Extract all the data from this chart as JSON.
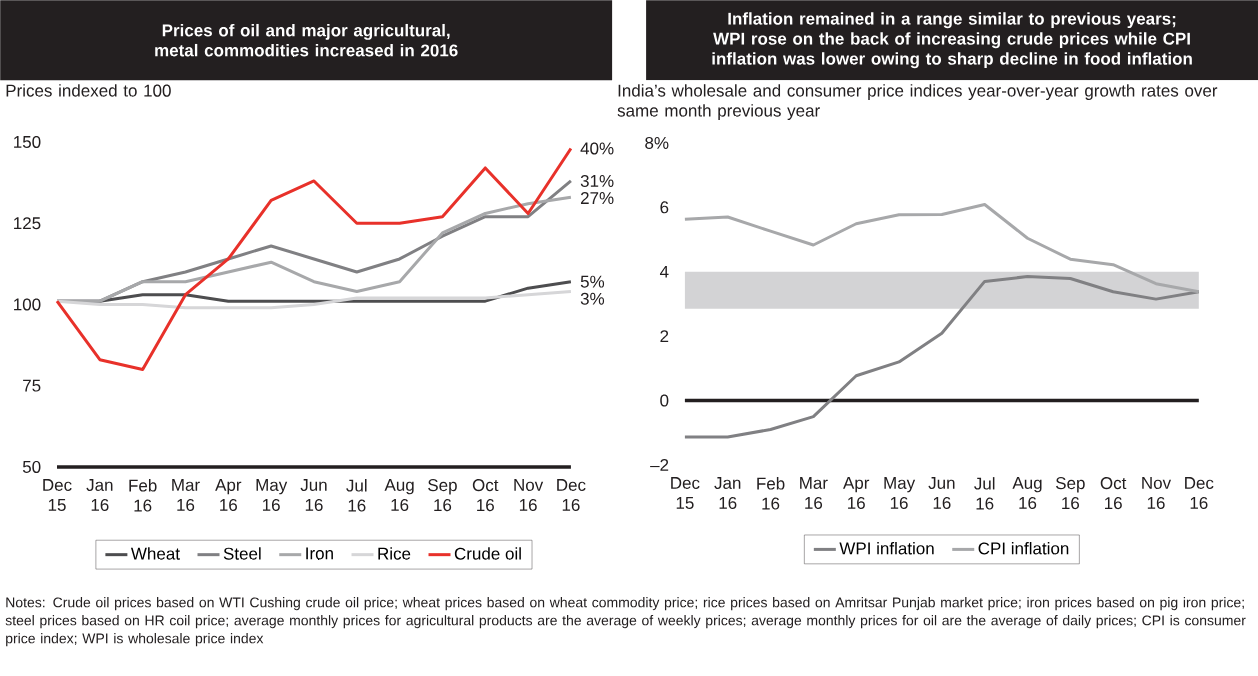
{
  "chart_data": [
    {
      "type": "line",
      "title": "Prices of oil and major agricultural, metal commodities increased in 2016",
      "ylabel": "Prices indexed to 100",
      "categories": [
        "Dec 15",
        "Jan 16",
        "Feb 16",
        "Mar 16",
        "Apr 16",
        "May 16",
        "Jun 16",
        "Jul 16",
        "Aug 16",
        "Sep 16",
        "Oct 16",
        "Nov 16",
        "Dec 16"
      ],
      "series": [
        {
          "name": "Wheat",
          "color": "#4d4d4f",
          "values": [
            101,
            101,
            103,
            103,
            101,
            101,
            101,
            101,
            101,
            101,
            101,
            105,
            107
          ]
        },
        {
          "name": "Steel",
          "color": "#808083",
          "values": [
            101,
            101,
            107,
            110,
            114,
            118,
            114,
            110,
            114,
            121,
            127,
            127,
            138
          ]
        },
        {
          "name": "Iron",
          "color": "#a7a8aa",
          "values": [
            101,
            101,
            107,
            107,
            110,
            113,
            107,
            104,
            107,
            122,
            128,
            131,
            133
          ]
        },
        {
          "name": "Rice",
          "color": "#d6d6d8",
          "values": [
            101,
            100,
            100,
            99,
            99,
            99,
            100,
            102,
            102,
            102,
            102,
            103,
            104
          ]
        },
        {
          "name": "Crude oil",
          "color": "#e8312a",
          "values": [
            101,
            83,
            80,
            103,
            114,
            132,
            138,
            125,
            125,
            127,
            142,
            128,
            148
          ]
        }
      ],
      "ylim": [
        50,
        150
      ],
      "yticks": [
        50,
        75,
        100,
        125,
        150
      ],
      "legend": "bottom",
      "annotations": [
        {
          "text": "40%",
          "x": "Dec 16",
          "y": 148
        },
        {
          "text": "31%",
          "x": "Dec 16",
          "y": 138
        },
        {
          "text": "27%",
          "x": "Dec 16",
          "y": 133
        },
        {
          "text": "5%",
          "x": "Dec 16",
          "y": 107
        },
        {
          "text": "3%",
          "x": "Dec 16",
          "y": 104
        },
        "Notes: Crude oil prices based on WTI Cushing crude oil price; wheat prices based on wheat commodity price; rice prices based on Amritsar Punjab market price; iron prices based on pig iron price; steel prices based on HR coil price; average monthly prices for agricultural products are the average of weekly prices; average monthly prices for oil are the average of daily prices; CPI is consumer price index; WPI is wholesale price index"
      ]
    },
    {
      "type": "line",
      "title": "Inflation remained in a range similar to previous years; WPI rose on the back of increasing crude prices while CPI inflation was lower owing to sharp decline in food inflation",
      "ylabel": "India’s wholesale and consumer price indices year-over-year growth rates over same month previous year",
      "categories": [
        "Dec 15",
        "Jan 16",
        "Feb 16",
        "Mar 16",
        "Apr 16",
        "May 16",
        "Jun 16",
        "Jul 16",
        "Aug 16",
        "Sep 16",
        "Oct 16",
        "Nov 16",
        "Dec 16"
      ],
      "series": [
        {
          "name": "WPI inflation",
          "color": "#808083",
          "values": [
            -1.13,
            -1.13,
            -0.9,
            -0.5,
            0.77,
            1.2,
            2.09,
            3.7,
            3.85,
            3.79,
            3.38,
            3.15,
            3.38
          ]
        },
        {
          "name": "CPI inflation",
          "color": "#a7a8aa",
          "values": [
            5.63,
            5.7,
            5.26,
            4.83,
            5.49,
            5.77,
            5.78,
            6.09,
            5.04,
            4.39,
            4.22,
            3.63,
            3.38
          ]
        }
      ],
      "ylim": [
        -2,
        8
      ],
      "yticks": [
        {
          "value": -2,
          "label": "–2"
        },
        0,
        2,
        4,
        6,
        {
          "value": 8,
          "label": "8%"
        }
      ],
      "ref_lines": [
        {
          "axis": "y",
          "value": 0,
          "color": "#231f20"
        }
      ],
      "bands": [
        {
          "axis": "y",
          "from": 2.85,
          "to": 4,
          "color": "#d3d3d5"
        }
      ],
      "legend": "bottom"
    }
  ]
}
